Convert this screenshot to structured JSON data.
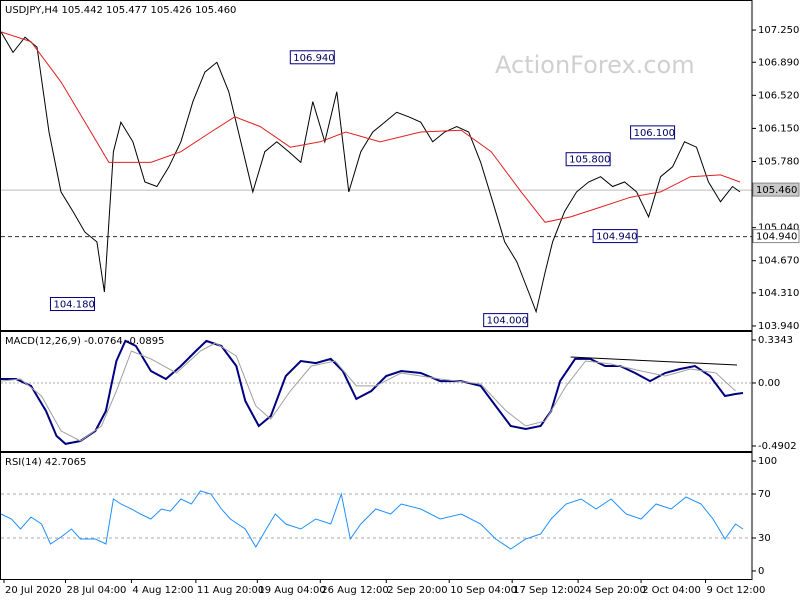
{
  "chart_data": [
    {
      "type": "line",
      "title": "USDJPY,H4  105.442 105.477 105.426 105.460",
      "watermark": "ActionForex.com",
      "xlim": [
        0,
        501
      ],
      "ylim": [
        103.895,
        107.564
      ],
      "yticks": [
        {
          "value": 107.25,
          "label": "107.250"
        },
        {
          "value": 106.89,
          "label": "106.890"
        },
        {
          "value": 106.52,
          "label": "106.520"
        },
        {
          "value": 106.15,
          "label": "106.150"
        },
        {
          "value": 105.78,
          "label": "105.780"
        },
        {
          "value": 105.04,
          "label": "105.040"
        },
        {
          "value": 104.67,
          "label": "104.670"
        },
        {
          "value": 104.31,
          "label": "104.310"
        },
        {
          "value": 103.94,
          "label": "103.940"
        }
      ],
      "series": [
        {
          "color": "#000000",
          "x": [
            0,
            8,
            16,
            24,
            32,
            40,
            48,
            56,
            64,
            69,
            75,
            80,
            88,
            96,
            104,
            112,
            120,
            128,
            136,
            144,
            152,
            160,
            168,
            176,
            184,
            192,
            200,
            208,
            216,
            224,
            232,
            240,
            248,
            256,
            264,
            272,
            280,
            288,
            296,
            304,
            312,
            320,
            328,
            336,
            344,
            352,
            357,
            363,
            368,
            376,
            384,
            392,
            400,
            408,
            416,
            424,
            432,
            440,
            448,
            456,
            464,
            472,
            480,
            488,
            493
          ],
          "values": [
            107.23,
            107.0,
            107.17,
            107.06,
            106.11,
            105.44,
            105.22,
            104.99,
            104.88,
            104.32,
            105.89,
            106.22,
            106.0,
            105.55,
            105.5,
            105.72,
            106.0,
            106.45,
            106.78,
            106.89,
            106.56,
            106.0,
            105.44,
            105.89,
            106.0,
            105.89,
            105.77,
            106.45,
            106.0,
            106.56,
            105.44,
            105.89,
            106.11,
            106.22,
            106.33,
            106.28,
            106.22,
            106.0,
            106.11,
            106.17,
            106.11,
            105.77,
            105.33,
            104.88,
            104.66,
            104.32,
            104.1,
            104.54,
            104.88,
            105.22,
            105.44,
            105.55,
            105.61,
            105.5,
            105.55,
            105.44,
            105.16,
            105.61,
            105.72,
            106.0,
            105.94,
            105.55,
            105.33,
            105.5,
            105.44
          ]
        },
        {
          "color": "#e02020",
          "x": [
            0,
            20,
            40,
            60,
            72,
            100,
            120,
            140,
            156,
            173,
            193,
            213,
            230,
            253,
            280,
            307,
            327,
            347,
            363,
            380,
            400,
            420,
            440,
            460,
            480,
            493
          ],
          "values": [
            107.23,
            107.12,
            106.67,
            106.11,
            105.77,
            105.77,
            105.89,
            106.11,
            106.28,
            106.17,
            105.94,
            106.0,
            106.11,
            106.0,
            106.11,
            106.13,
            105.89,
            105.44,
            105.1,
            105.16,
            105.27,
            105.38,
            105.44,
            105.61,
            105.63,
            105.55
          ]
        }
      ],
      "price_lines": [
        {
          "value": 105.46,
          "label": "105.460",
          "style": "solid"
        },
        {
          "value": 104.94,
          "label": "104.940",
          "style": "dashed"
        }
      ],
      "annotations": [
        {
          "x": 193,
          "value": 106.94,
          "label": "106.940"
        },
        {
          "x": 33,
          "value": 104.18,
          "label": "104.180"
        },
        {
          "x": 322,
          "value": 104.0,
          "label": "104.000"
        },
        {
          "x": 377,
          "value": 105.8,
          "label": "105.800"
        },
        {
          "x": 395,
          "value": 104.94,
          "label": "104.940"
        },
        {
          "x": 420,
          "value": 106.1,
          "label": "106.100"
        }
      ]
    },
    {
      "type": "line",
      "title": "MACD(12,26,9) -0.0764 -0.0895",
      "xlim": [
        0,
        501
      ],
      "ylim": [
        -0.5291,
        0.3888
      ],
      "yticks": [
        0.3343,
        {
          "value": 0,
          "label": "0.00"
        },
        -0.4902
      ],
      "series": [
        {
          "color": "#000080",
          "width": 2,
          "x": [
            0,
            10,
            20,
            30,
            37,
            43,
            53,
            63,
            70,
            77,
            83,
            90,
            100,
            110,
            120,
            130,
            137,
            147,
            157,
            163,
            172,
            180,
            190,
            200,
            210,
            220,
            228,
            237,
            247,
            257,
            267,
            280,
            293,
            307,
            320,
            330,
            340,
            350,
            360,
            367,
            373,
            383,
            393,
            403,
            413,
            423,
            433,
            443,
            453,
            463,
            473,
            483,
            490,
            495
          ],
          "values": [
            0.031,
            0.031,
            -0.023,
            -0.218,
            -0.412,
            -0.474,
            -0.451,
            -0.373,
            -0.218,
            0.171,
            0.327,
            0.288,
            0.093,
            0.031,
            0.132,
            0.249,
            0.327,
            0.288,
            0.132,
            -0.14,
            -0.335,
            -0.257,
            0.054,
            0.171,
            0.155,
            0.187,
            0.093,
            -0.124,
            -0.062,
            0.054,
            0.093,
            0.078,
            0.015,
            0.015,
            -0.023,
            -0.179,
            -0.335,
            -0.358,
            -0.335,
            -0.218,
            0.015,
            0.187,
            0.187,
            0.132,
            0.132,
            0.078,
            0.015,
            0.078,
            0.109,
            0.132,
            0.054,
            -0.101,
            -0.086,
            -0.078
          ]
        },
        {
          "color": "#a0a0a0",
          "width": 1,
          "x": [
            0,
            13,
            27,
            40,
            53,
            67,
            77,
            87,
            100,
            117,
            133,
            143,
            157,
            170,
            180,
            193,
            207,
            223,
            237,
            250,
            267,
            293,
            320,
            337,
            350,
            363,
            377,
            390,
            407,
            427,
            443,
            460,
            477,
            490
          ],
          "values": [
            0.015,
            0.031,
            -0.101,
            -0.373,
            -0.451,
            -0.335,
            -0.062,
            0.249,
            0.187,
            0.078,
            0.249,
            0.311,
            0.21,
            -0.179,
            -0.28,
            -0.062,
            0.132,
            0.171,
            -0.023,
            -0.023,
            0.078,
            0.031,
            -0.008,
            -0.218,
            -0.335,
            -0.296,
            -0.023,
            0.171,
            0.148,
            0.093,
            0.054,
            0.109,
            0.078,
            -0.062
          ]
        }
      ],
      "trendline": {
        "x": [
          380,
          491
        ],
        "values": [
          0.2021,
          0.1399
        ]
      }
    },
    {
      "type": "line",
      "title": "RSI(14) 42.7065",
      "xlim": [
        0,
        501
      ],
      "ylim": [
        -7.3,
        106.4
      ],
      "yticks": [
        100,
        70,
        30,
        0
      ],
      "levels": [
        70,
        30
      ],
      "xticks": [
        {
          "value": 2,
          "label": "20 Jul 2020"
        },
        {
          "value": 43,
          "label": "28 Jul 04:00"
        },
        {
          "value": 87,
          "label": "4 Aug 12:00"
        },
        {
          "value": 130,
          "label": "11 Aug 20:00"
        },
        {
          "value": 171,
          "label": "19 Aug 04:00"
        },
        {
          "value": 213,
          "label": "26 Aug 12:00"
        },
        {
          "value": 257,
          "label": "2 Sep 20:00"
        },
        {
          "value": 299,
          "label": "10 Sep 04:00"
        },
        {
          "value": 341,
          "label": "17 Sep 12:00"
        },
        {
          "value": 385,
          "label": "24 Sep 20:00"
        },
        {
          "value": 427,
          "label": "2 Oct 04:00"
        },
        {
          "value": 470,
          "label": "9 Oct 12:00"
        }
      ],
      "series": [
        {
          "color": "#1e90ff",
          "x": [
            0,
            7,
            13,
            20,
            27,
            33,
            40,
            47,
            53,
            63,
            70,
            75,
            80,
            87,
            93,
            100,
            107,
            113,
            120,
            127,
            133,
            140,
            147,
            153,
            163,
            170,
            177,
            183,
            190,
            200,
            210,
            220,
            227,
            233,
            240,
            250,
            260,
            267,
            280,
            293,
            307,
            320,
            330,
            340,
            350,
            360,
            367,
            377,
            387,
            397,
            407,
            417,
            427,
            437,
            447,
            457,
            467,
            475,
            483,
            490,
            495
          ],
          "values": [
            51.8,
            47.3,
            38.2,
            49.1,
            42.7,
            24.5,
            30.9,
            38.2,
            29.1,
            29.1,
            24.5,
            65.5,
            60.9,
            56.4,
            51.8,
            47.3,
            56.4,
            54.5,
            65.5,
            60.9,
            72.7,
            70,
            56.4,
            47.3,
            38.2,
            21.8,
            38.2,
            51.8,
            42.7,
            38.2,
            47.3,
            42.7,
            70,
            29.1,
            42.7,
            56.4,
            51.8,
            60.9,
            56.4,
            47.3,
            51.8,
            42.7,
            29.1,
            20,
            29.1,
            33.6,
            47.3,
            60.9,
            65.5,
            56.4,
            65.5,
            51.8,
            47.3,
            60.9,
            56.4,
            67.3,
            60.9,
            47.3,
            29.1,
            42.7,
            38.2
          ]
        }
      ]
    }
  ]
}
